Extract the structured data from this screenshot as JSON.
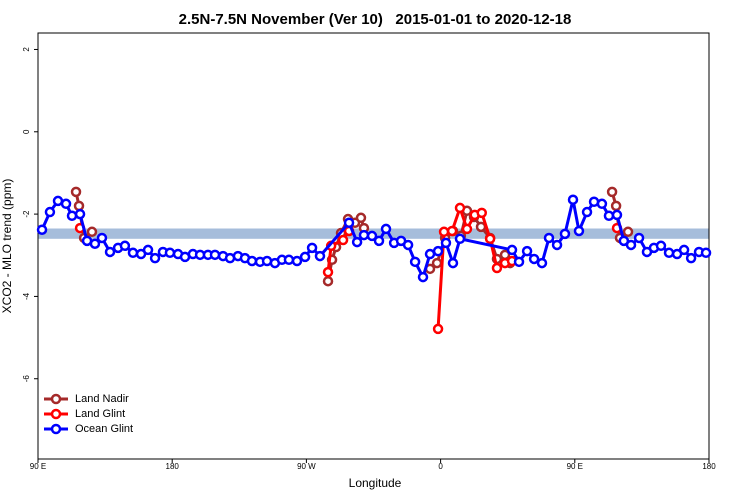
{
  "chart_data": {
    "type": "line",
    "title": "2.5N-7.5N November (Ver 10)   2015-01-01 to 2020-12-18",
    "x_label": "Longitude",
    "y_label": "XCO2 - MLO trend (ppm)",
    "xlim": [
      90,
      540
    ],
    "ylim": [
      -7.95,
      2.4
    ],
    "xticks": [
      {
        "value": 90,
        "label": "90 E"
      },
      {
        "value": 180,
        "label": "180"
      },
      {
        "value": 270,
        "label": "90 W"
      },
      {
        "value": 360,
        "label": "0"
      },
      {
        "value": 450,
        "label": "90 E"
      },
      {
        "value": 540,
        "label": "180"
      }
    ],
    "yticks": [
      2,
      0,
      -2,
      -4,
      -6
    ],
    "band": {
      "ymin": -2.6,
      "ymax": -2.35,
      "color": "#a6bddb"
    },
    "legend": "bottomleft",
    "series": [
      {
        "name": "Land Nadir",
        "color": "#a52a2a",
        "x": [
          115.5,
          117.5,
          120.9,
          126.2,
          null,
          284.5,
          287.2,
          289.9,
          293.2,
          297.9,
          302.6,
          306.6,
          308.6,
          null,
          352.9,
          357.6,
          363,
          368.3,
          373.6,
          377.7,
          382.4,
          387.1,
          393.2,
          397.8,
          403.2,
          406.6,
          null,
          475,
          477.7,
          480.3,
          485.7
        ],
        "values": [
          -1.46,
          -1.8,
          -2.58,
          -2.43,
          null,
          -3.63,
          -3.11,
          -2.8,
          -2.46,
          -2.12,
          -2.21,
          -2.09,
          -2.34,
          null,
          -3.33,
          -3.19,
          -2.58,
          -2.41,
          -2.53,
          -1.92,
          -2.07,
          -2.31,
          -2.58,
          -3.09,
          -2.99,
          -3.19,
          null,
          -1.46,
          -1.8,
          -2.58,
          -2.43
        ]
      },
      {
        "name": "Land Glint",
        "color": "#ff0000",
        "x": [
          118.2,
          null,
          284.5,
          286.6,
          294.6,
          298.6,
          null,
          358.3,
          362.3,
          367.7,
          373,
          377.7,
          382.9,
          387.6,
          393.2,
          397.8,
          403.2,
          407.9,
          null,
          478.3
        ],
        "values": [
          -2.34,
          null,
          -3.41,
          -2.77,
          -2.63,
          -2.41,
          null,
          -4.79,
          -2.43,
          -2.41,
          -1.85,
          -2.36,
          -2.02,
          -1.97,
          -2.6,
          -3.31,
          -3.19,
          -3.14,
          null,
          -2.34
        ]
      },
      {
        "name": "Ocean Glint",
        "color": "#0000ff",
        "x": [
          92.7,
          98,
          103.4,
          108.8,
          112.8,
          118.2,
          122.9,
          128.2,
          132.9,
          138.3,
          143.7,
          148.3,
          153.7,
          159.1,
          163.8,
          168.5,
          173.8,
          178.5,
          183.9,
          188.6,
          193.9,
          198.7,
          204,
          208.7,
          214.1,
          218.8,
          224.1,
          228.8,
          233.5,
          238.9,
          243.6,
          248.9,
          253.6,
          258.3,
          263.7,
          269.1,
          273.8,
          279.1,
          298.6,
          304,
          308.6,
          314,
          318.7,
          323.4,
          328.8,
          333.5,
          338.2,
          342.9,
          348.2,
          352.9,
          358.3,
          363.6,
          368.3,
          373,
          407.9,
          412.6,
          418,
          422.7,
          428,
          432.7,
          438.1,
          443.4,
          448.8,
          452.8,
          458.2,
          462.9,
          468.2,
          472.9,
          478.3,
          482.9,
          487.7,
          493.1,
          498.4,
          503.1,
          507.8,
          513.2,
          518.6,
          523.3,
          528,
          533.3,
          538
        ],
        "values": [
          -2.38,
          -1.95,
          -1.68,
          -1.75,
          -2.04,
          -2.0,
          -2.65,
          -2.72,
          -2.58,
          -2.92,
          -2.82,
          -2.77,
          -2.94,
          -2.97,
          -2.87,
          -3.07,
          -2.92,
          -2.94,
          -2.97,
          -3.04,
          -2.97,
          -2.99,
          -2.99,
          -2.99,
          -3.02,
          -3.07,
          -3.02,
          -3.07,
          -3.14,
          -3.16,
          -3.14,
          -3.19,
          -3.11,
          -3.11,
          -3.14,
          -3.04,
          -2.82,
          -3.02,
          -2.21,
          -2.68,
          -2.51,
          -2.53,
          -2.65,
          -2.36,
          -2.7,
          -2.65,
          -2.75,
          -3.16,
          -3.53,
          -2.97,
          -2.9,
          -2.7,
          -3.19,
          -2.6,
          -2.87,
          -3.16,
          -2.9,
          -3.09,
          -3.19,
          -2.58,
          -2.75,
          -2.48,
          -1.65,
          -2.41,
          -1.95,
          -1.7,
          -1.75,
          -2.04,
          -2.02,
          -2.65,
          -2.75,
          -2.58,
          -2.92,
          -2.82,
          -2.77,
          -2.94,
          -2.97,
          -2.87,
          -3.07,
          -2.92,
          -2.94
        ]
      }
    ]
  }
}
